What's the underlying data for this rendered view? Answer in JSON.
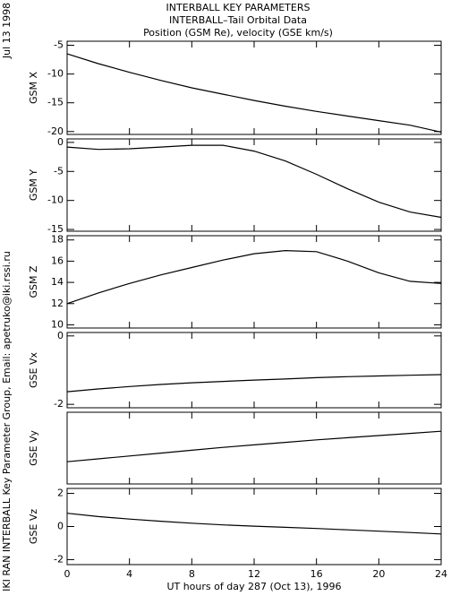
{
  "title_lines": [
    "INTERBALL KEY PARAMETERS",
    "INTERBALL–Tail Orbital Data",
    "Position (GSM Re), velocity (GSE km/s)"
  ],
  "margin_notes": {
    "date": "Jul 13 1998",
    "credit": "IKI RAN INTERBALL Key Parameter Group, Email: apetruko@iki.rssi.ru"
  },
  "x_axis": {
    "label": "UT hours of day 287 (Oct 13), 1996",
    "xlim": [
      0,
      24
    ],
    "xticks": [
      0,
      4,
      8,
      12,
      16,
      20,
      24
    ],
    "x": [
      0,
      2,
      4,
      6,
      8,
      10,
      12,
      14,
      16,
      18,
      20,
      22,
      24
    ]
  },
  "chart_data": [
    {
      "type": "line",
      "ylabel": "GSM X",
      "ylim": [
        -20.5,
        -4.3
      ],
      "yticks": [
        -5,
        -10,
        -15,
        -20
      ],
      "color": "#000000",
      "values": [
        -6.5,
        -8.2,
        -9.7,
        -11.1,
        -12.4,
        -13.5,
        -14.6,
        -15.6,
        -16.5,
        -17.3,
        -18.1,
        -18.9,
        -20.1
      ]
    },
    {
      "type": "line",
      "ylabel": "GSM Y",
      "ylim": [
        -15.3,
        0.6
      ],
      "yticks": [
        0,
        -5,
        -10,
        -15
      ],
      "color": "#000000",
      "values": [
        -0.8,
        -1.2,
        -1.1,
        -0.8,
        -0.5,
        -0.5,
        -1.5,
        -3.2,
        -5.5,
        -8.0,
        -10.3,
        -12.0,
        -12.9
      ]
    },
    {
      "type": "line",
      "ylabel": "GSM Z",
      "ylim": [
        9.7,
        18.4
      ],
      "yticks": [
        18,
        16,
        14,
        12,
        10
      ],
      "color": "#000000",
      "values": [
        12.0,
        13.0,
        13.9,
        14.7,
        15.4,
        16.1,
        16.7,
        17.0,
        16.9,
        16.0,
        14.9,
        14.1,
        13.9
      ]
    },
    {
      "type": "line",
      "ylabel": "GSE Vx",
      "ylim": [
        -2.1,
        0.1
      ],
      "yticks": [
        0,
        -2
      ],
      "color": "#000000",
      "values": [
        -1.63,
        -1.55,
        -1.48,
        -1.42,
        -1.37,
        -1.33,
        -1.29,
        -1.26,
        -1.22,
        -1.19,
        -1.17,
        -1.15,
        -1.13
      ]
    },
    {
      "type": "line",
      "ylabel": "GSE Vy",
      "ylim": [
        -2,
        0
      ],
      "yticks": [],
      "color": "#000000",
      "values": [
        -1.38,
        -1.3,
        -1.22,
        -1.14,
        -1.06,
        -0.98,
        -0.91,
        -0.84,
        -0.77,
        -0.71,
        -0.65,
        -0.59,
        -0.53
      ]
    },
    {
      "type": "line",
      "ylabel": "GSE Vz",
      "ylim": [
        -2.3,
        2.3
      ],
      "yticks": [
        2,
        0,
        -2
      ],
      "color": "#000000",
      "values": [
        0.8,
        0.6,
        0.45,
        0.32,
        0.2,
        0.1,
        0.02,
        -0.05,
        -0.12,
        -0.2,
        -0.28,
        -0.36,
        -0.45
      ]
    }
  ]
}
